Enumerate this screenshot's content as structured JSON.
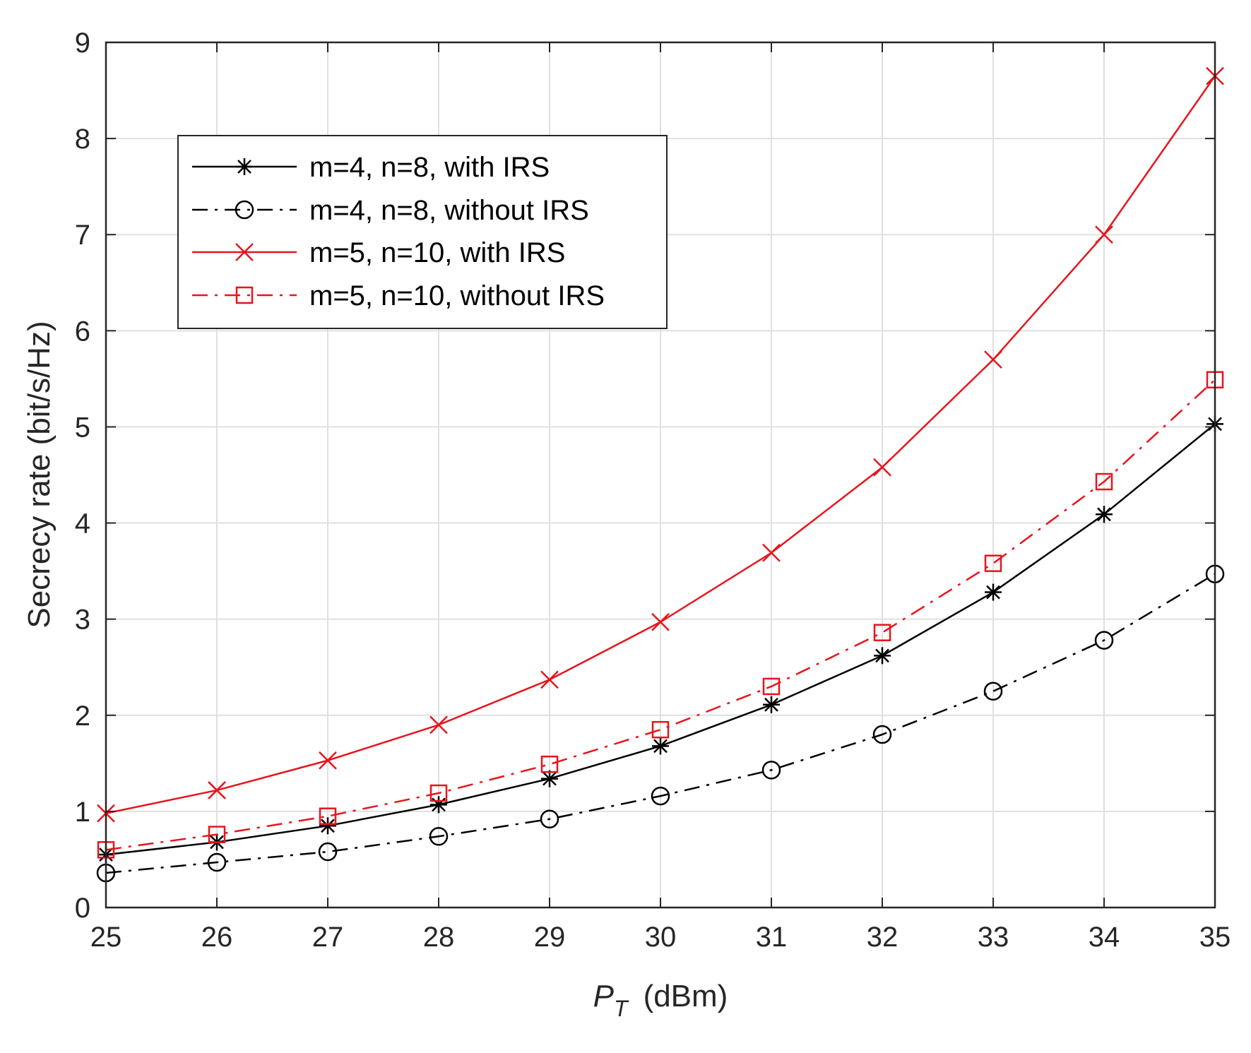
{
  "chart_data": {
    "type": "line",
    "xlabel_main": "P",
    "xlabel_sub": "T",
    "xlabel_unit": "(dBm)",
    "ylabel": "Secrecy rate (bit/s/Hz)",
    "xlim": [
      25,
      35
    ],
    "ylim": [
      0,
      9
    ],
    "x_ticks": [
      "25",
      "26",
      "27",
      "28",
      "29",
      "30",
      "31",
      "32",
      "33",
      "34",
      "35"
    ],
    "y_ticks": [
      "0",
      "1",
      "2",
      "3",
      "4",
      "5",
      "6",
      "7",
      "8",
      "9"
    ],
    "grid": true,
    "legend_position": "top-left",
    "x": [
      25,
      26,
      27,
      28,
      29,
      30,
      31,
      32,
      33,
      34,
      35
    ],
    "series": [
      {
        "name": "m=4, n=8, with IRS",
        "color": "#000000",
        "line": "solid",
        "marker": "asterisk",
        "values": [
          0.55,
          0.68,
          0.85,
          1.07,
          1.34,
          1.68,
          2.11,
          2.62,
          3.28,
          4.09,
          5.03
        ]
      },
      {
        "name": "m=4, n=8, without IRS",
        "color": "#000000",
        "line": "dashdot",
        "marker": "circle",
        "values": [
          0.36,
          0.47,
          0.58,
          0.74,
          0.92,
          1.16,
          1.43,
          1.8,
          2.25,
          2.78,
          3.47
        ]
      },
      {
        "name": "m=5, n=10, with IRS",
        "color": "#e8141c",
        "line": "solid",
        "marker": "x",
        "values": [
          0.98,
          1.22,
          1.53,
          1.9,
          2.37,
          2.97,
          3.69,
          4.58,
          5.7,
          7.0,
          8.65
        ]
      },
      {
        "name": "m=5, n=10, without IRS",
        "color": "#e8141c",
        "line": "dashdot",
        "marker": "square",
        "values": [
          0.6,
          0.76,
          0.95,
          1.19,
          1.49,
          1.85,
          2.3,
          2.86,
          3.58,
          4.43,
          5.49
        ]
      }
    ]
  }
}
